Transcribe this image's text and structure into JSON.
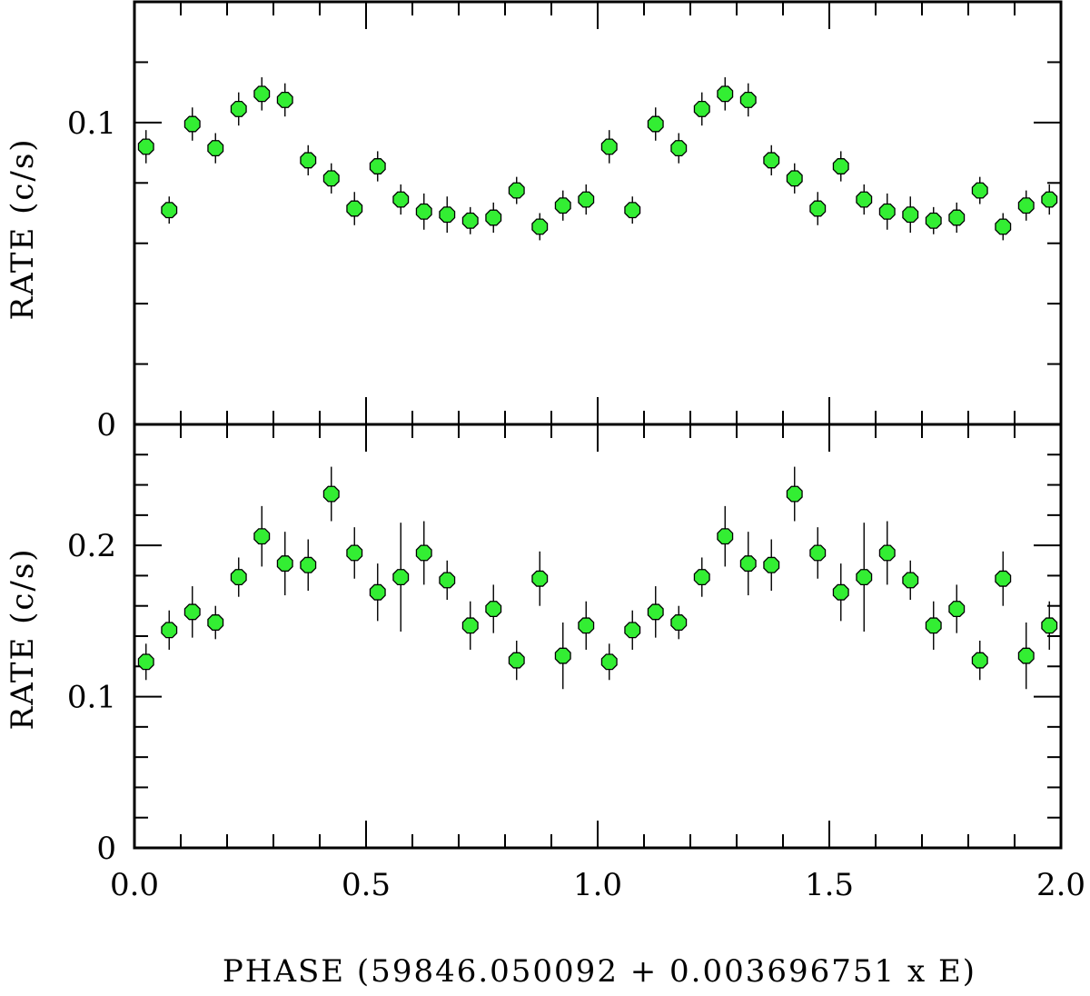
{
  "chart_data": [
    {
      "type": "scatter",
      "panel": "top",
      "xlabel": "",
      "ylabel": "RATE (c/s)",
      "xlim": [
        0.0,
        2.0
      ],
      "ylim": [
        0,
        0.14
      ],
      "ytick_labels": [
        {
          "value": 0,
          "label": "0"
        },
        {
          "value": 0.1,
          "label": "0.1"
        }
      ],
      "marker_color": "#33ee33",
      "points": [
        {
          "x": 0.025,
          "y": 0.092,
          "err": 0.0055
        },
        {
          "x": 0.075,
          "y": 0.071,
          "err": 0.0045
        },
        {
          "x": 0.125,
          "y": 0.0995,
          "err": 0.0055
        },
        {
          "x": 0.175,
          "y": 0.0915,
          "err": 0.005
        },
        {
          "x": 0.225,
          "y": 0.1045,
          "err": 0.0055
        },
        {
          "x": 0.275,
          "y": 0.1095,
          "err": 0.0055
        },
        {
          "x": 0.325,
          "y": 0.1075,
          "err": 0.0055
        },
        {
          "x": 0.375,
          "y": 0.0875,
          "err": 0.005
        },
        {
          "x": 0.425,
          "y": 0.0815,
          "err": 0.005
        },
        {
          "x": 0.475,
          "y": 0.0715,
          "err": 0.0055
        },
        {
          "x": 0.525,
          "y": 0.0855,
          "err": 0.005
        },
        {
          "x": 0.575,
          "y": 0.0745,
          "err": 0.005
        },
        {
          "x": 0.625,
          "y": 0.0705,
          "err": 0.006
        },
        {
          "x": 0.675,
          "y": 0.0695,
          "err": 0.006
        },
        {
          "x": 0.725,
          "y": 0.0675,
          "err": 0.0045
        },
        {
          "x": 0.775,
          "y": 0.0685,
          "err": 0.005
        },
        {
          "x": 0.825,
          "y": 0.0775,
          "err": 0.0045
        },
        {
          "x": 0.875,
          "y": 0.0655,
          "err": 0.0045
        },
        {
          "x": 0.925,
          "y": 0.0725,
          "err": 0.005
        },
        {
          "x": 0.975,
          "y": 0.0745,
          "err": 0.005
        }
      ]
    },
    {
      "type": "scatter",
      "panel": "bottom",
      "xlabel": "PHASE (59846.050092 + 0.003696751 x E)",
      "ylabel": "RATE (c/s)",
      "xlim": [
        0.0,
        2.0
      ],
      "ylim": [
        0,
        0.28
      ],
      "xtick_labels": [
        {
          "value": 0.0,
          "label": "0.0"
        },
        {
          "value": 0.5,
          "label": "0.5"
        },
        {
          "value": 1.0,
          "label": "1.0"
        },
        {
          "value": 1.5,
          "label": "1.5"
        },
        {
          "value": 2.0,
          "label": "2.0"
        }
      ],
      "ytick_labels": [
        {
          "value": 0,
          "label": "0"
        },
        {
          "value": 0.1,
          "label": "0.1"
        },
        {
          "value": 0.2,
          "label": "0.2"
        }
      ],
      "marker_color": "#33ee33",
      "points": [
        {
          "x": 0.025,
          "y": 0.123,
          "err": 0.012
        },
        {
          "x": 0.075,
          "y": 0.144,
          "err": 0.013
        },
        {
          "x": 0.125,
          "y": 0.156,
          "err": 0.017
        },
        {
          "x": 0.175,
          "y": 0.149,
          "err": 0.011
        },
        {
          "x": 0.225,
          "y": 0.179,
          "err": 0.013
        },
        {
          "x": 0.275,
          "y": 0.206,
          "err": 0.02
        },
        {
          "x": 0.325,
          "y": 0.188,
          "err": 0.021
        },
        {
          "x": 0.375,
          "y": 0.187,
          "err": 0.017
        },
        {
          "x": 0.425,
          "y": 0.234,
          "err": 0.018
        },
        {
          "x": 0.475,
          "y": 0.195,
          "err": 0.017
        },
        {
          "x": 0.525,
          "y": 0.169,
          "err": 0.019
        },
        {
          "x": 0.575,
          "y": 0.179,
          "err": 0.036
        },
        {
          "x": 0.625,
          "y": 0.195,
          "err": 0.021
        },
        {
          "x": 0.675,
          "y": 0.177,
          "err": 0.013
        },
        {
          "x": 0.725,
          "y": 0.147,
          "err": 0.016
        },
        {
          "x": 0.775,
          "y": 0.158,
          "err": 0.016
        },
        {
          "x": 0.825,
          "y": 0.124,
          "err": 0.013
        },
        {
          "x": 0.875,
          "y": 0.178,
          "err": 0.018
        },
        {
          "x": 0.925,
          "y": 0.127,
          "err": 0.022
        },
        {
          "x": 0.975,
          "y": 0.147,
          "err": 0.016
        }
      ]
    }
  ]
}
